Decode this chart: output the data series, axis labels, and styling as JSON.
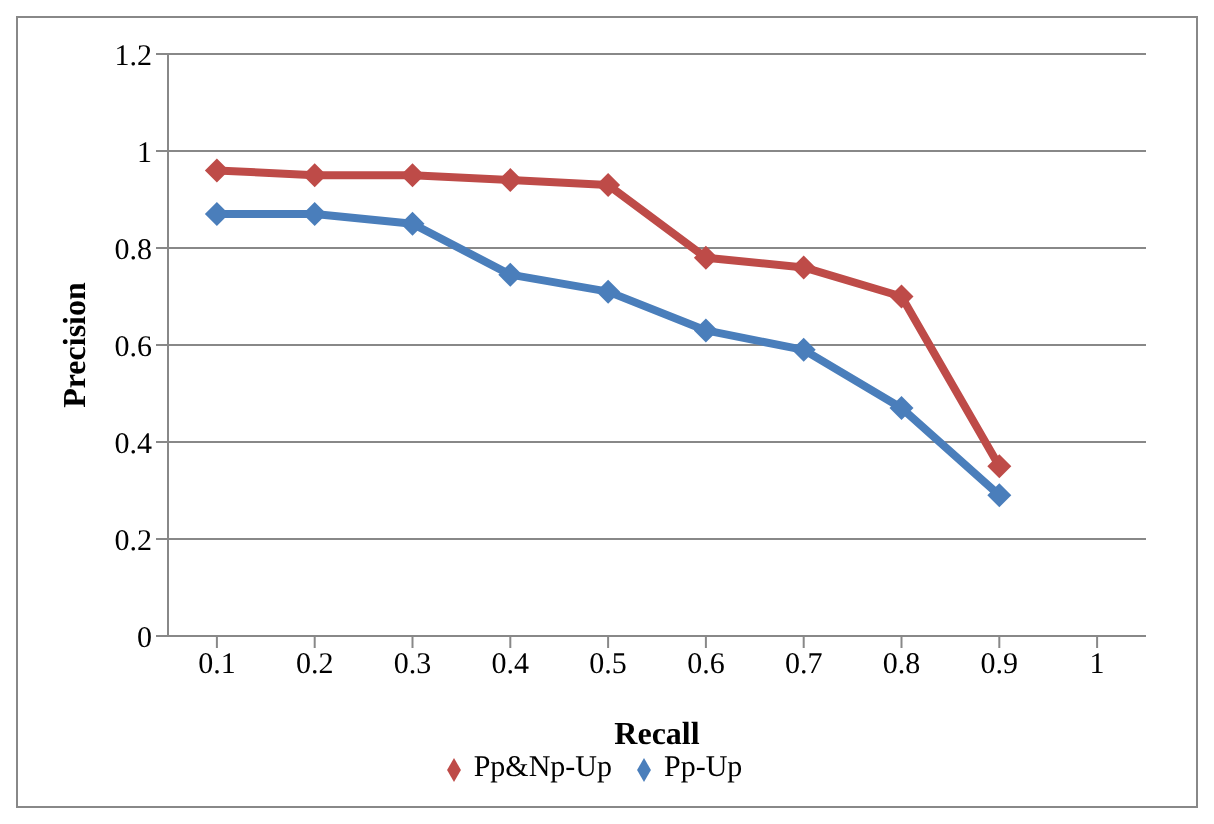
{
  "chart_data": {
    "type": "line",
    "xlabel": "Recall",
    "ylabel": "Precision",
    "categories": [
      "0.1",
      "0.2",
      "0.3",
      "0.4",
      "0.5",
      "0.6",
      "0.7",
      "0.8",
      "0.9",
      "1"
    ],
    "series": [
      {
        "name": "Pp-Up",
        "color": "#4a7ebb",
        "values": [
          0.87,
          0.87,
          0.85,
          0.745,
          0.71,
          0.63,
          0.59,
          0.47,
          0.29,
          null
        ]
      },
      {
        "name": "Pp&Np-Up",
        "color": "#be4b48",
        "values": [
          0.96,
          0.95,
          0.95,
          0.94,
          0.93,
          0.78,
          0.76,
          0.7,
          0.35,
          null
        ]
      }
    ],
    "ylim": [
      0,
      1.2
    ],
    "yticks": [
      0,
      0.2,
      0.4,
      0.6,
      0.8,
      1,
      1.2
    ],
    "grid": "y",
    "legend": "bottom",
    "marker": "diamond",
    "line_style": "solid"
  }
}
